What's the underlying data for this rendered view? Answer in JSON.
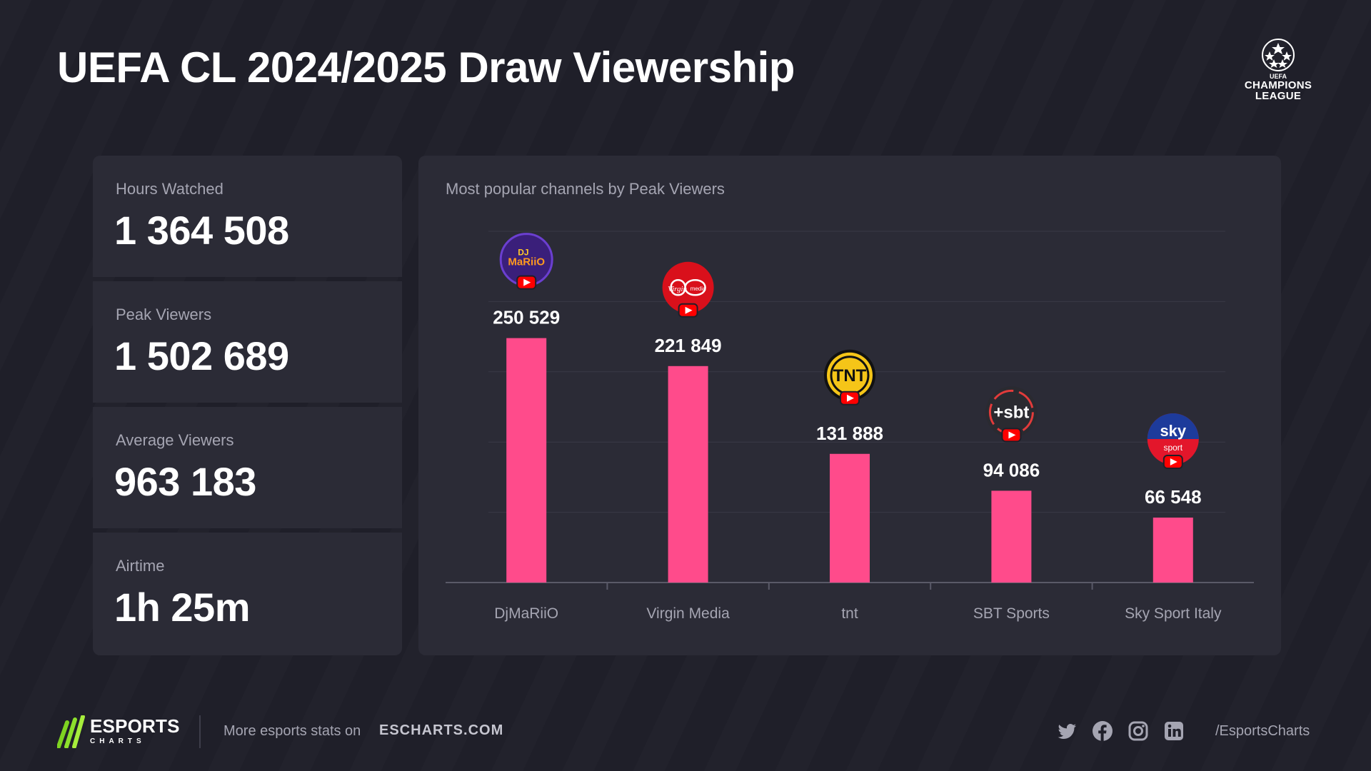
{
  "header": {
    "title": "UEFA CL 2024/2025 Draw Viewership"
  },
  "league_logo": {
    "icon": "starball-icon",
    "small": "UEFA",
    "name_line1": "CHAMPIONS",
    "name_line2": "LEAGUE"
  },
  "stats": [
    {
      "label": "Hours Watched",
      "value": "1 364 508"
    },
    {
      "label": "Peak Viewers",
      "value": "1 502 689"
    },
    {
      "label": "Average Viewers",
      "value": "963 183"
    },
    {
      "label": "Airtime",
      "value": "1h 25m"
    }
  ],
  "chart_title": "Most popular channels by Peak Viewers",
  "chart_data": {
    "type": "bar",
    "title": "Most popular channels by Peak Viewers",
    "categories": [
      "DjMaRiiO",
      "Virgin Media",
      "tnt",
      "SBT Sports",
      "Sky Sport Italy"
    ],
    "values": [
      250529,
      221849,
      131888,
      94086,
      66548
    ],
    "value_labels": [
      "250 529",
      "221 849",
      "131 888",
      "94 086",
      "66 548"
    ],
    "ylim": [
      0,
      360000
    ],
    "grid": true,
    "bar_color": "#ff4b8b",
    "platform_icon": "youtube-icon",
    "channel_icons": [
      "djmariio-logo-icon",
      "virgin-media-logo-icon",
      "tnt-logo-icon",
      "sbt-logo-icon",
      "sky-sport-logo-icon"
    ]
  },
  "channel_logo_text": {
    "dj_top": "DJ",
    "dj_name": "MaRiiO",
    "virgin": "Virgin",
    "virgin_media": "media",
    "tnt": "TNT",
    "sbt": "+sbt",
    "sky": "sky",
    "sky_sport": "sport"
  },
  "footer": {
    "brand": "ESPORTS",
    "brand_sub": "CHARTS",
    "promo": "More esports stats on",
    "site": "ESCHARTS.COM",
    "social_icons": [
      "twitter-icon",
      "facebook-icon",
      "instagram-icon",
      "linkedin-icon"
    ],
    "handle": "/EsportsCharts"
  },
  "colors": {
    "background": "#1f1f29",
    "panel": "#2b2b36",
    "accent": "#ff4b8b",
    "muted_text": "#a5a5b2"
  }
}
